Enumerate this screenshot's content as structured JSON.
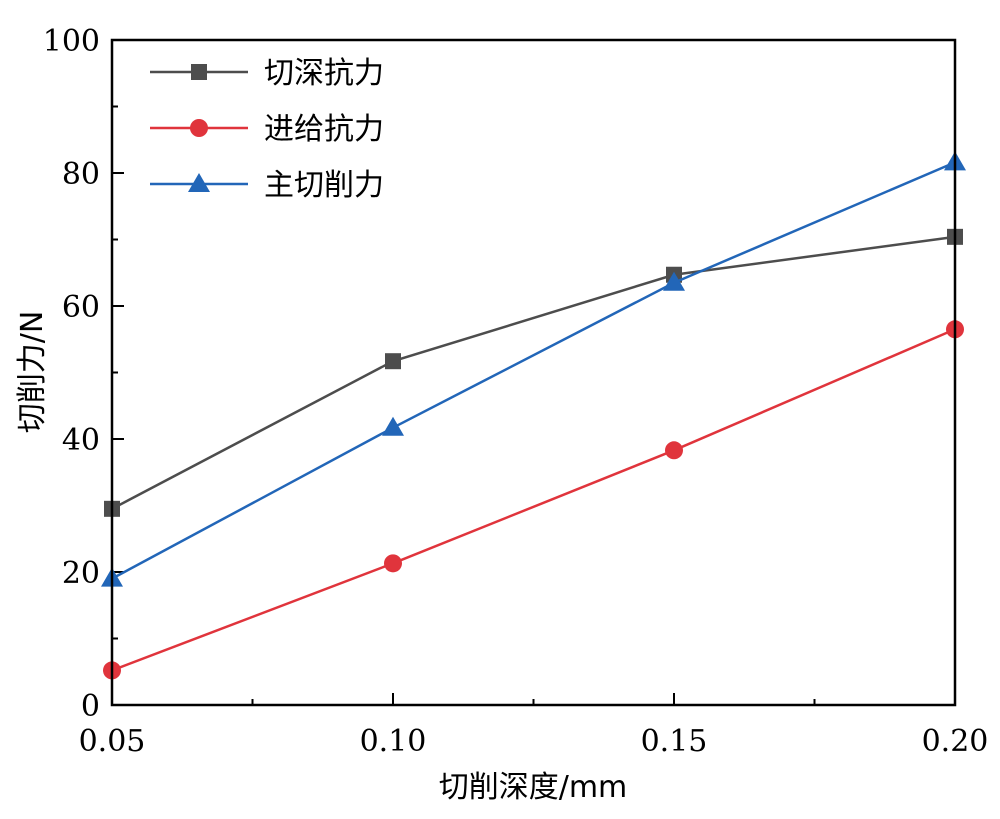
{
  "chart_data": {
    "type": "line",
    "x": [
      0.05,
      0.1,
      0.15,
      0.2
    ],
    "x_tick_labels": [
      "0.05",
      "0.10",
      "0.15",
      "0.20"
    ],
    "y_ticks": [
      0,
      20,
      40,
      60,
      80,
      100
    ],
    "y_tick_labels": [
      "0",
      "20",
      "40",
      "60",
      "80",
      "100"
    ],
    "xlabel": "切削深度/mm",
    "ylabel": "切削力/N",
    "xlim": [
      0.05,
      0.2
    ],
    "ylim": [
      0,
      100
    ],
    "grid": false,
    "legend_position": "top-left",
    "series": [
      {
        "name": "切深抗力",
        "values": [
          29.5,
          51.7,
          64.7,
          70.4
        ],
        "color": "#4d4d4d",
        "marker": "square"
      },
      {
        "name": "进给抗力",
        "values": [
          5.2,
          21.3,
          38.3,
          56.5
        ],
        "color": "#e0343c",
        "marker": "circle"
      },
      {
        "name": "主切削力",
        "values": [
          19.0,
          41.7,
          63.5,
          81.6
        ],
        "color": "#2266b8",
        "marker": "triangle"
      }
    ]
  }
}
